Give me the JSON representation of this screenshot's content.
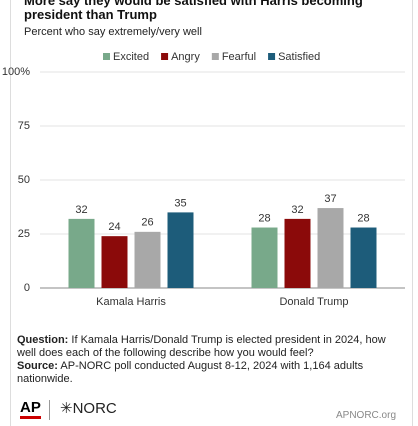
{
  "chart_data": {
    "type": "bar",
    "title": "More say they would be satisfied with Harris becoming president than Trump",
    "subtitle": "Percent who say extremely/very well",
    "categories": [
      "Kamala Harris",
      "Donald Trump"
    ],
    "series": [
      {
        "name": "Excited",
        "color": "#78a98a",
        "values": [
          32,
          28
        ]
      },
      {
        "name": "Angry",
        "color": "#8b0a0a",
        "values": [
          24,
          32
        ]
      },
      {
        "name": "Fearful",
        "color": "#a8a8a8",
        "values": [
          26,
          37
        ]
      },
      {
        "name": "Satisfied",
        "color": "#1d5c7a",
        "values": [
          35,
          28
        ]
      }
    ],
    "ylim": [
      0,
      100
    ],
    "yticks": [
      0,
      25,
      50,
      75,
      {
        "value": 100,
        "label": "100%"
      }
    ],
    "grid": true,
    "legend": "top"
  },
  "footer": {
    "question_label": "Question:",
    "question": "If Kamala Harris/Donald Trump is elected president in 2024, how well does each of the following describe how you would feel?",
    "source_label": "Source:",
    "source": "AP-NORC poll conducted August 8-12, 2024 with 1,164 adults nationwide.",
    "logo_ap": "AP",
    "logo_norc": "NORC",
    "site": "APNORC.org"
  }
}
